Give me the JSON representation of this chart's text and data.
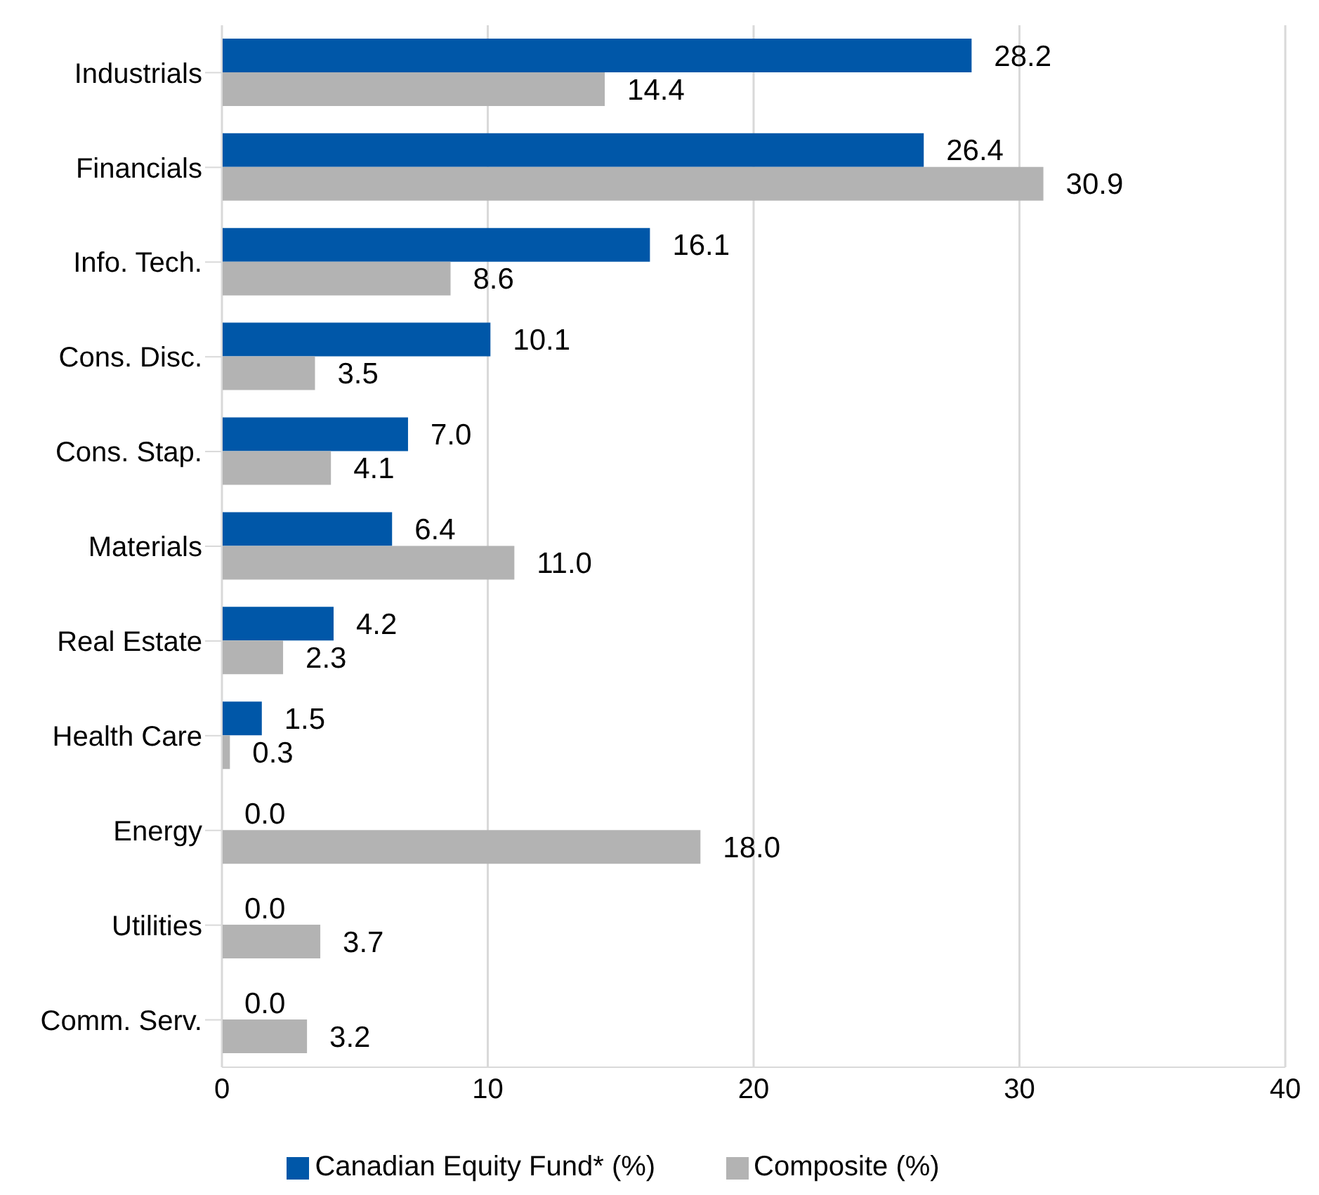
{
  "chart_data": {
    "type": "bar",
    "orientation": "horizontal",
    "categories": [
      "Industrials",
      "Financials",
      "Info. Tech.",
      "Cons. Disc.",
      "Cons. Stap.",
      "Materials",
      "Real Estate",
      "Health Care",
      "Energy",
      "Utilities",
      "Comm. Serv."
    ],
    "series": [
      {
        "name": "Canadian Equity Fund* (%)",
        "color": "#0057a8",
        "values": [
          28.2,
          26.4,
          16.1,
          10.1,
          7.0,
          6.4,
          4.2,
          1.5,
          0.0,
          0.0,
          0.0
        ],
        "value_labels": [
          "28.2",
          "26.4",
          "16.1",
          "10.1",
          "7.0",
          "6.4",
          "4.2",
          "1.5",
          "0.0",
          "0.0",
          "0.0"
        ]
      },
      {
        "name": "Composite (%)",
        "color": "#b3b3b3",
        "values": [
          14.4,
          30.9,
          8.6,
          3.5,
          4.1,
          11.0,
          2.3,
          0.3,
          18.0,
          3.7,
          3.2
        ],
        "value_labels": [
          "14.4",
          "30.9",
          "8.6",
          "3.5",
          "4.1",
          "11.0",
          "2.3",
          "0.3",
          "18.0",
          "3.7",
          "3.2"
        ]
      }
    ],
    "xlim": [
      0,
      40
    ],
    "xticks": [
      0,
      10,
      20,
      30,
      40
    ],
    "grid": "x",
    "legend": "bottom"
  }
}
